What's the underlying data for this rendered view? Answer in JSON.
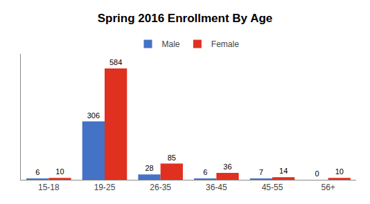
{
  "chart_data": {
    "type": "bar",
    "title": "Spring 2016 Enrollment By Age",
    "categories": [
      "15-18",
      "19-25",
      "26-35",
      "36-45",
      "45-55",
      "56+"
    ],
    "series": [
      {
        "name": "Male",
        "color": "#4472C4",
        "values": [
          6,
          306,
          28,
          6,
          7,
          0
        ]
      },
      {
        "name": "Female",
        "color": "#E03020",
        "values": [
          10,
          584,
          85,
          36,
          14,
          10
        ]
      }
    ],
    "ylim": [
      0,
      660
    ],
    "yticks": [],
    "grid": false,
    "legend": "top",
    "data_labels": true,
    "tick_labels": "x"
  }
}
